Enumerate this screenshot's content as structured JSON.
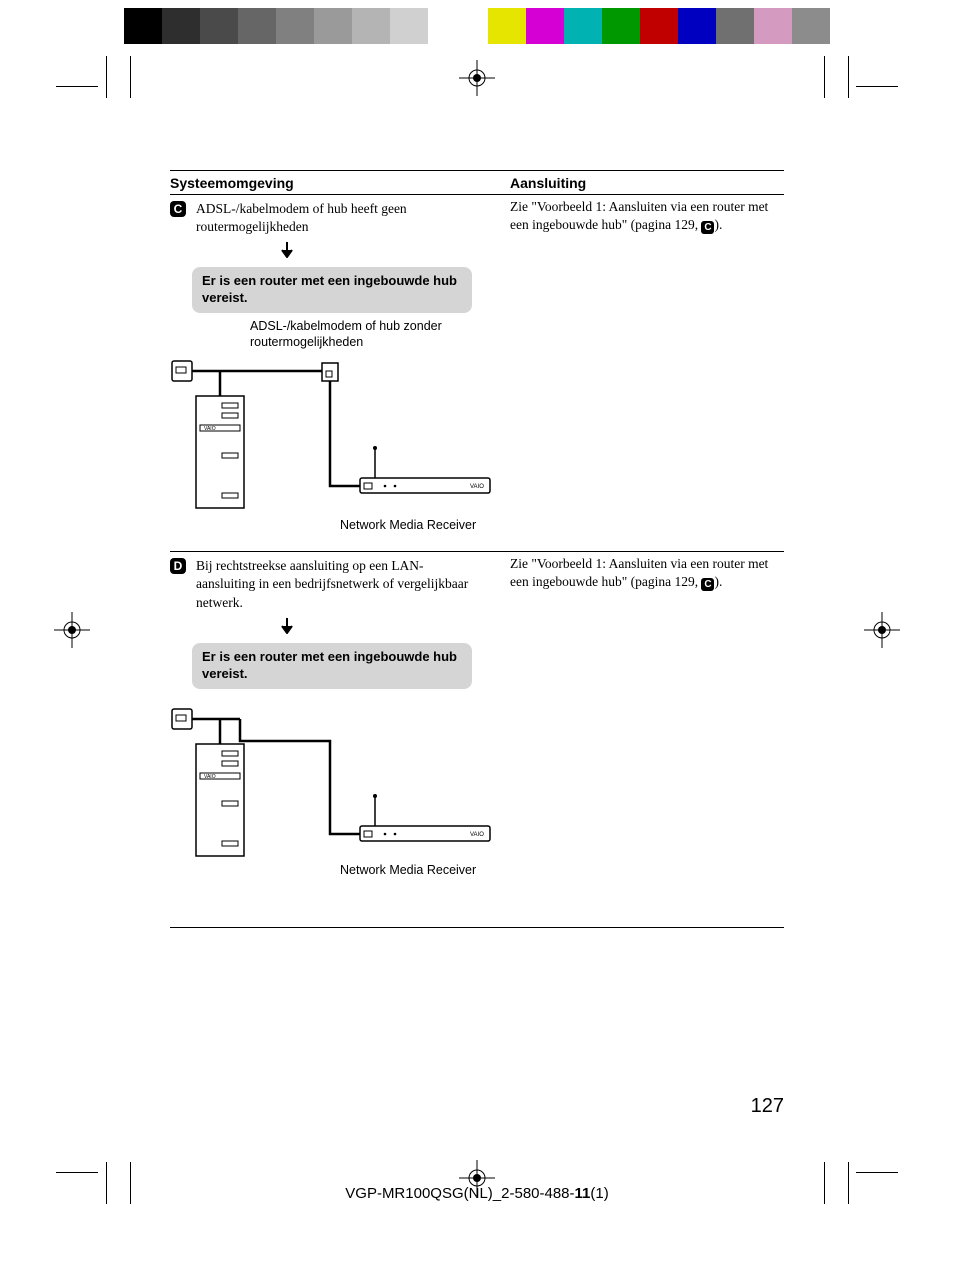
{
  "colorbar": {
    "left_colors": [
      "#000000",
      "#2e2e2e",
      "#4a4a4a",
      "#666666",
      "#808080",
      "#9a9a9a",
      "#b4b4b4",
      "#d0d0d0",
      "#ffffff"
    ],
    "right_colors": [
      "#e5e500",
      "#d400d4",
      "#00b2b2",
      "#009800",
      "#c00000",
      "#0000c0",
      "#707070",
      "#d49ac0",
      "#8c8c8c"
    ]
  },
  "headers": {
    "left": "Systeemomgeving",
    "right": "Aansluiting"
  },
  "sections": [
    {
      "letter": "C",
      "desc": "ADSL-/kabelmodem of hub heeft geen routermogelijkheden",
      "requirement": "Er is een router met een ingebouwde hub vereist.",
      "top_label": "ADSL-/kabelmodem of hub zonder routermogelijkheden",
      "bottom_label": "Network Media Receiver",
      "right_text_pre": "Zie \"Voorbeeld 1: Aansluiten via een router met een ingebouwde hub\" (pagina 129, ",
      "right_letter": "C",
      "right_text_post": ").",
      "has_modem": true
    },
    {
      "letter": "D",
      "desc": "Bij rechtstreekse aansluiting op een LAN-aansluiting in een bedrijfsnetwerk of vergelijkbaar netwerk.",
      "requirement": "Er is een router met een ingebouwde hub vereist.",
      "top_label": "",
      "bottom_label": "Network Media Receiver",
      "right_text_pre": "Zie \"Voorbeeld 1: Aansluiten via een router met een ingebouwde hub\" (pagina 129, ",
      "right_letter": "C",
      "right_text_post": ").",
      "has_modem": false
    }
  ],
  "page_number": "127",
  "footer_pre": "VGP-MR100QSG(NL)_2-580-488-",
  "footer_bold": "11",
  "footer_post": "(1)"
}
